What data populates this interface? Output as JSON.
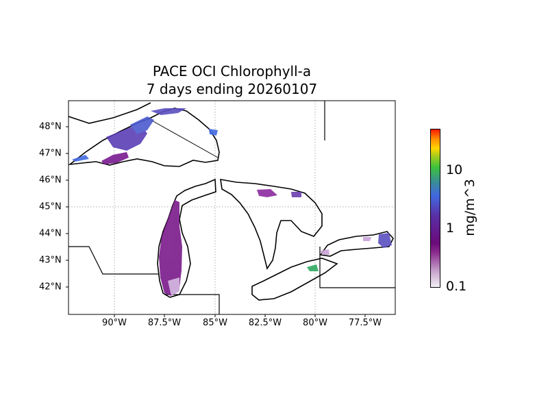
{
  "title": {
    "line1": "PACE OCI Chlorophyll-a",
    "line2": "7 days ending 20260107"
  },
  "map": {
    "x_ticks": [
      "90°W",
      "87.5°W",
      "85°W",
      "82.5°W",
      "80°W",
      "77.5°W"
    ],
    "y_ticks": [
      "48°N",
      "47°N",
      "46°N",
      "45°N",
      "44°N",
      "43°N",
      "42°N"
    ],
    "extent_lon": [
      -92.3,
      -76.0
    ],
    "extent_lat": [
      41.0,
      49.0
    ],
    "gridlines": true
  },
  "colorbar": {
    "label": "mg/m^3",
    "scale": "log",
    "range": [
      0.1,
      50
    ],
    "ticks": [
      "0.1",
      "1",
      "10"
    ],
    "colors": [
      "#f2f0f5",
      "#8b2a8e",
      "#6a0a7a",
      "#4169e1",
      "#3cc33c",
      "#ffd700",
      "#ff1a00"
    ]
  }
}
